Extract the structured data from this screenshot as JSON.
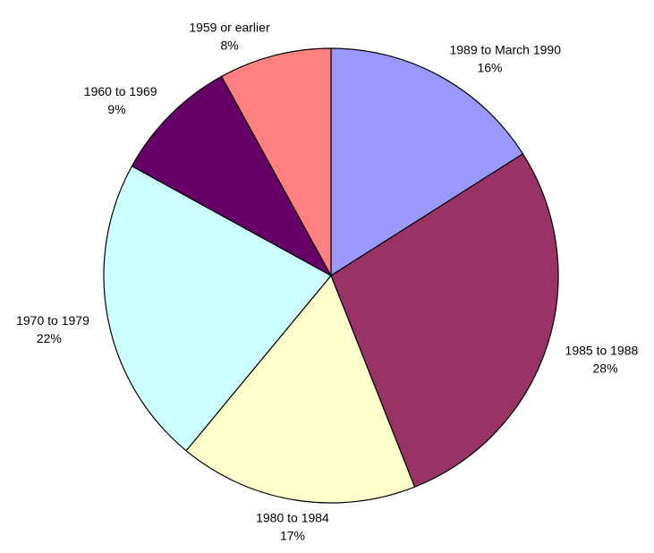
{
  "chart_data": {
    "type": "pie",
    "categories": [
      "1989 to March 1990",
      "1985 to 1988",
      "1980 to 1984",
      "1970 to 1979",
      "1960 to 1969",
      "1959 or earlier"
    ],
    "values": [
      16,
      28,
      17,
      22,
      9,
      8
    ],
    "value_labels": [
      "16%",
      "28%",
      "17%",
      "22%",
      "9%",
      "8%"
    ],
    "colors": [
      "#9999ff",
      "#993366",
      "#ffffcc",
      "#ccffff",
      "#660066",
      "#ff8080"
    ]
  }
}
